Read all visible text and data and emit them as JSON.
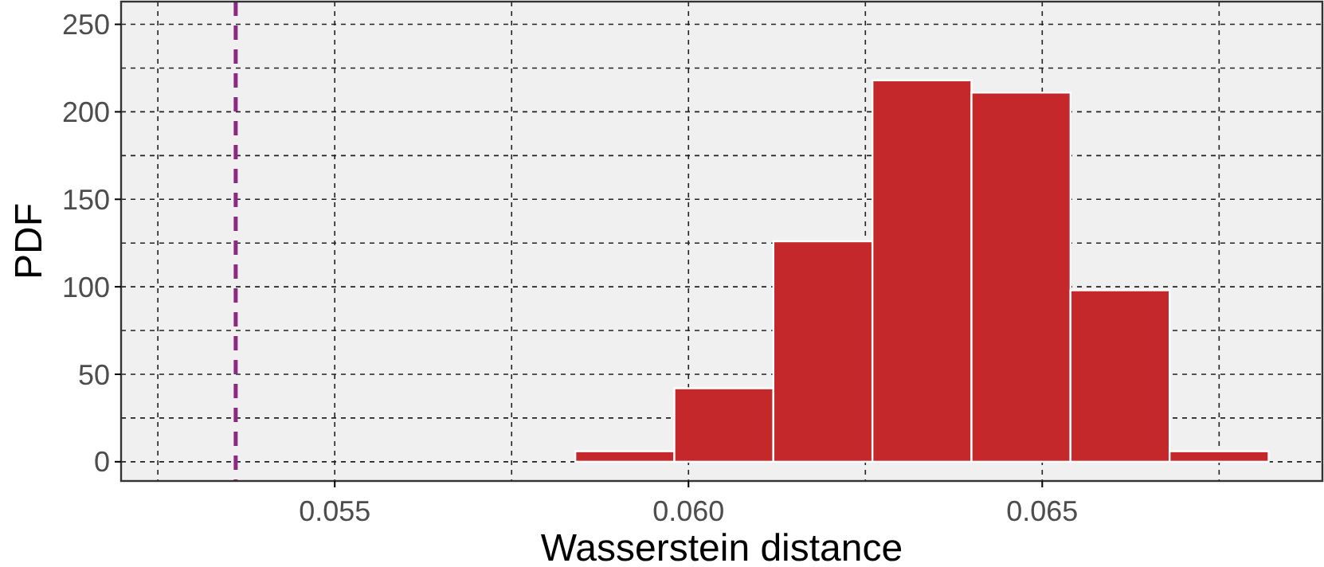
{
  "chart_data": {
    "type": "histogram",
    "xlabel": "Wasserstein distance",
    "ylabel": "PDF",
    "bins": [
      0.0528,
      0.0542,
      0.0556,
      0.057,
      0.0584,
      0.0598,
      0.0612,
      0.0626,
      0.064,
      0.0654,
      0.0668,
      0.0682
    ],
    "values": [
      0,
      0,
      0,
      0,
      6,
      42,
      126,
      218,
      211,
      98,
      6
    ],
    "color": "#c4282b",
    "xlim": [
      0.05198,
      0.06896
    ],
    "ylim": [
      -11,
      263
    ],
    "xticks": [
      {
        "value": 0.0525,
        "label": null
      },
      {
        "value": 0.055,
        "label": "0.055"
      },
      {
        "value": 0.0575,
        "label": null
      },
      {
        "value": 0.06,
        "label": "0.060"
      },
      {
        "value": 0.0625,
        "label": null
      },
      {
        "value": 0.065,
        "label": "0.065"
      },
      {
        "value": 0.0675,
        "label": null
      }
    ],
    "yticks": [
      0,
      {
        "value": 25,
        "label": null
      },
      50,
      {
        "value": 75,
        "label": null
      },
      100,
      {
        "value": 125,
        "label": null
      },
      150,
      {
        "value": 175,
        "label": null
      },
      200,
      {
        "value": 225,
        "label": null
      },
      250
    ],
    "grid": true,
    "ref_lines": [
      {
        "axis": "x",
        "value": 0.0536,
        "label": null,
        "color": "#8c2981",
        "line_style": "dashed"
      }
    ]
  }
}
